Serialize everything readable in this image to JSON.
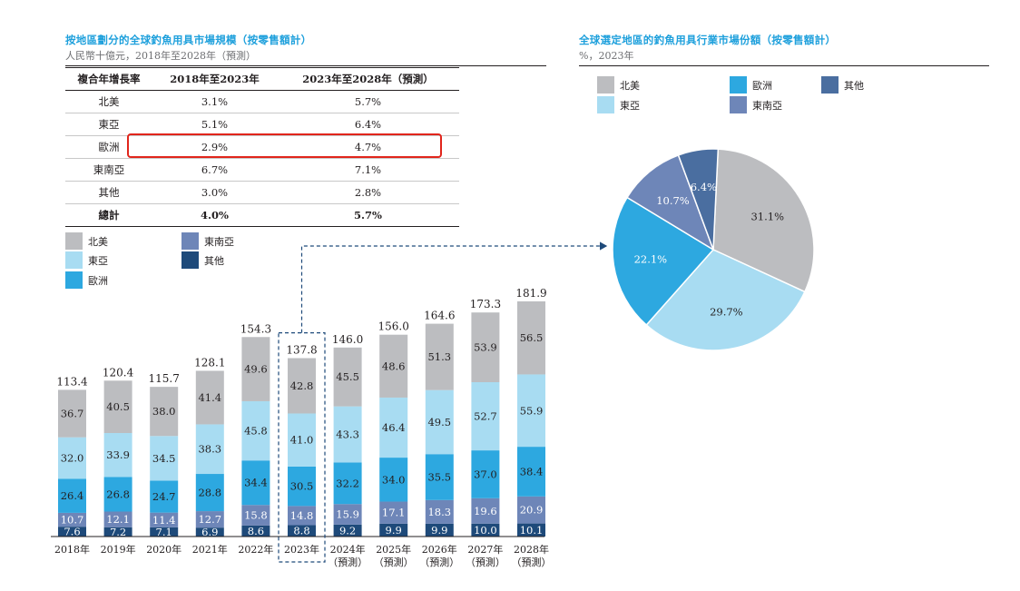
{
  "left": {
    "title": "按地區劃分的全球釣魚用具市場規模（按零售額計）",
    "subtitle": "人民幣十億元，2018年至2028年（預測）"
  },
  "cagr_table": {
    "headers": [
      "複合年增長率",
      "2018年至2023年",
      "2023年至2028年（預測）"
    ],
    "rows": [
      [
        "北美",
        "3.1%",
        "5.7%"
      ],
      [
        "東亞",
        "5.1%",
        "6.4%"
      ],
      [
        "歐洲",
        "2.9%",
        "4.7%"
      ],
      [
        "東南亞",
        "6.7%",
        "7.1%"
      ],
      [
        "其他",
        "3.0%",
        "2.8%"
      ]
    ],
    "total": [
      "總計",
      "4.0%",
      "5.7%"
    ],
    "highlighted_row": "歐洲"
  },
  "right": {
    "title": "全球選定地區的釣魚用具行業市場份額（按零售額計）",
    "subtitle": "%，2023年"
  },
  "colors": {
    "北美": "#bcbdc0",
    "東亞": "#a8dcf2",
    "歐洲": "#2da8e0",
    "東南亞": "#6e86b8",
    "其他": "#1e4a7a",
    "pie_其他": "#4a6ea0",
    "highlight": "#e1251b",
    "title_blue": "#1ea0dc",
    "dashed": "#1e4a7a"
  },
  "bar_legend": [
    "北美",
    "東南亞",
    "東亞",
    "其他",
    "歐洲"
  ],
  "pie_legend": [
    "北美",
    "歐洲",
    "其他",
    "東亞",
    "東南亞"
  ],
  "chart_data": [
    {
      "type": "bar",
      "stacked": true,
      "title": "按地區劃分的全球釣魚用具市場規模（按零售額計）",
      "unit": "人民幣十億元",
      "categories": [
        "2018年",
        "2019年",
        "2020年",
        "2021年",
        "2022年",
        "2023年",
        "2024年\n（預測）",
        "2025年\n（預測）",
        "2026年\n（預測）",
        "2027年\n（預測）",
        "2028年\n（預測）"
      ],
      "highlighted_category": "2023年",
      "series": [
        {
          "name": "其他",
          "values": [
            7.6,
            7.2,
            7.1,
            6.9,
            8.6,
            8.8,
            9.2,
            9.9,
            9.9,
            10.0,
            10.1
          ]
        },
        {
          "name": "東南亞",
          "values": [
            10.7,
            12.1,
            11.4,
            12.7,
            15.8,
            14.8,
            15.9,
            17.1,
            18.3,
            19.6,
            20.9
          ]
        },
        {
          "name": "歐洲",
          "values": [
            26.4,
            26.8,
            24.7,
            28.8,
            34.4,
            30.5,
            32.2,
            34.0,
            35.5,
            37.0,
            38.4
          ]
        },
        {
          "name": "東亞",
          "values": [
            32.0,
            33.9,
            34.5,
            38.3,
            45.8,
            41.0,
            43.3,
            46.4,
            49.5,
            52.7,
            55.9
          ]
        },
        {
          "name": "北美",
          "values": [
            36.7,
            40.5,
            38.0,
            41.4,
            49.6,
            42.8,
            45.5,
            48.6,
            51.3,
            53.9,
            56.5
          ]
        }
      ],
      "totals": [
        113.4,
        120.4,
        115.7,
        128.1,
        154.3,
        137.8,
        146.0,
        156.0,
        164.6,
        173.3,
        181.9
      ]
    },
    {
      "type": "pie",
      "title": "全球選定地區的釣魚用具行業市場份額（按零售額計）",
      "subtitle": "%，2023年",
      "slices": [
        {
          "name": "北美",
          "value": 31.1,
          "label": "31.1%"
        },
        {
          "name": "東亞",
          "value": 29.7,
          "label": "29.7%"
        },
        {
          "name": "歐洲",
          "value": 22.1,
          "label": "22.1%"
        },
        {
          "name": "東南亞",
          "value": 10.7,
          "label": "10.7%"
        },
        {
          "name": "其他",
          "value": 6.4,
          "label": "6.4%"
        }
      ]
    }
  ]
}
